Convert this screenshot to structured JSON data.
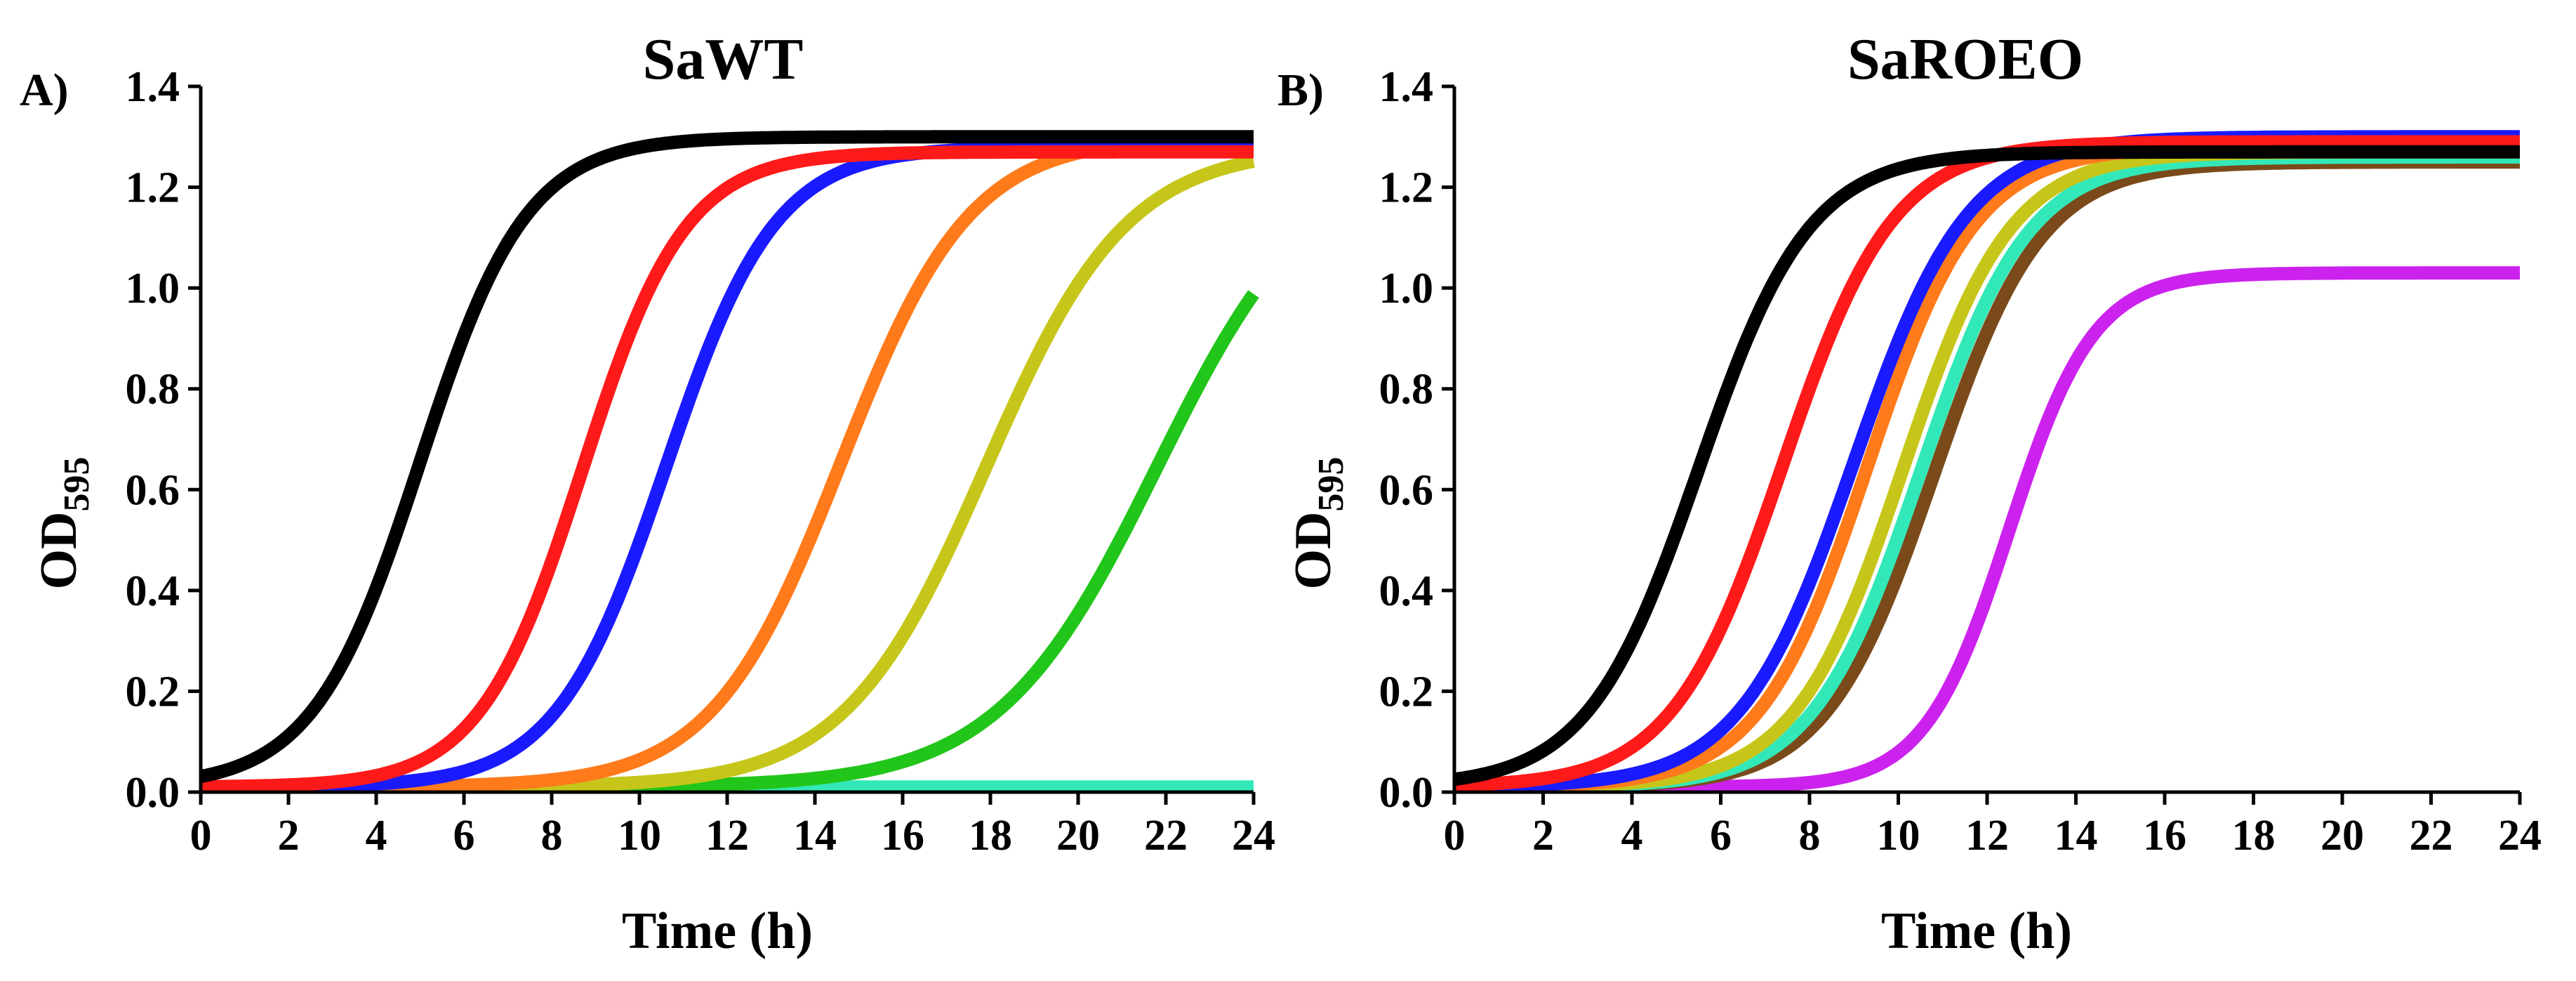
{
  "chart_data": [
    {
      "type": "line",
      "panel_label": "A)",
      "title": "SaWT",
      "xlabel": "Time (h)",
      "ylabel_main": "OD",
      "ylabel_sub": "595",
      "xlim": [
        0,
        24
      ],
      "ylim": [
        0,
        1.4
      ],
      "x_ticks": [
        "0",
        "2",
        "4",
        "6",
        "8",
        "10",
        "12",
        "14",
        "16",
        "18",
        "20",
        "22",
        "24"
      ],
      "y_ticks": [
        "0.0",
        "0.2",
        "0.4",
        "0.6",
        "0.8",
        "1.0",
        "1.2",
        "1.4"
      ],
      "series": [
        {
          "name": "curve-cyan",
          "color": "#33e8b8",
          "baseline": 0.01,
          "plateau": 0.01,
          "midpoint": 12.0,
          "rate": 1.0
        },
        {
          "name": "curve-green",
          "color": "#22c51a",
          "baseline": 0.01,
          "plateau": 1.28,
          "midpoint": 21.8,
          "rate": 0.55
        },
        {
          "name": "curve-olive",
          "color": "#c6c61a",
          "baseline": 0.01,
          "plateau": 1.28,
          "midpoint": 17.9,
          "rate": 0.62
        },
        {
          "name": "curve-orange",
          "color": "#ff7a1a",
          "baseline": 0.01,
          "plateau": 1.3,
          "midpoint": 14.6,
          "rate": 0.68
        },
        {
          "name": "curve-blue",
          "color": "#1a1aff",
          "baseline": 0.01,
          "plateau": 1.28,
          "midpoint": 10.6,
          "rate": 0.8
        },
        {
          "name": "curve-red",
          "color": "#ff1a1a",
          "baseline": 0.01,
          "plateau": 1.27,
          "midpoint": 8.7,
          "rate": 0.85
        },
        {
          "name": "curve-black",
          "color": "#000000",
          "baseline": 0.01,
          "plateau": 1.3,
          "midpoint": 5.0,
          "rate": 0.82
        }
      ]
    },
    {
      "type": "line",
      "panel_label": "B)",
      "title": "SaROEO",
      "xlabel": "Time (h)",
      "ylabel_main": "OD",
      "ylabel_sub": "595",
      "xlim": [
        0,
        24
      ],
      "ylim": [
        0,
        1.4
      ],
      "x_ticks": [
        "0",
        "2",
        "4",
        "6",
        "8",
        "10",
        "12",
        "14",
        "16",
        "18",
        "20",
        "22",
        "24"
      ],
      "y_ticks": [
        "0.0",
        "0.2",
        "0.4",
        "0.6",
        "0.8",
        "1.0",
        "1.2",
        "1.4"
      ],
      "series": [
        {
          "name": "curve-magenta",
          "color": "#cc22ee",
          "baseline": 0.01,
          "plateau": 1.03,
          "midpoint": 12.5,
          "rate": 1.05
        },
        {
          "name": "curve-brown",
          "color": "#7a4a1a",
          "baseline": 0.01,
          "plateau": 1.25,
          "midpoint": 10.8,
          "rate": 0.82
        },
        {
          "name": "curve-cyan",
          "color": "#33e8b8",
          "baseline": 0.01,
          "plateau": 1.26,
          "midpoint": 10.5,
          "rate": 0.82
        },
        {
          "name": "curve-olive",
          "color": "#c6c61a",
          "baseline": 0.01,
          "plateau": 1.27,
          "midpoint": 10.1,
          "rate": 0.82
        },
        {
          "name": "curve-orange",
          "color": "#ff7a1a",
          "baseline": 0.01,
          "plateau": 1.28,
          "midpoint": 9.3,
          "rate": 0.82
        },
        {
          "name": "curve-blue",
          "color": "#1a1aff",
          "baseline": 0.01,
          "plateau": 1.3,
          "midpoint": 9.0,
          "rate": 0.78
        },
        {
          "name": "curve-red",
          "color": "#ff1a1a",
          "baseline": 0.01,
          "plateau": 1.29,
          "midpoint": 7.4,
          "rate": 0.8
        },
        {
          "name": "curve-black",
          "color": "#000000",
          "baseline": 0.01,
          "plateau": 1.27,
          "midpoint": 5.5,
          "rate": 0.8
        }
      ]
    }
  ]
}
